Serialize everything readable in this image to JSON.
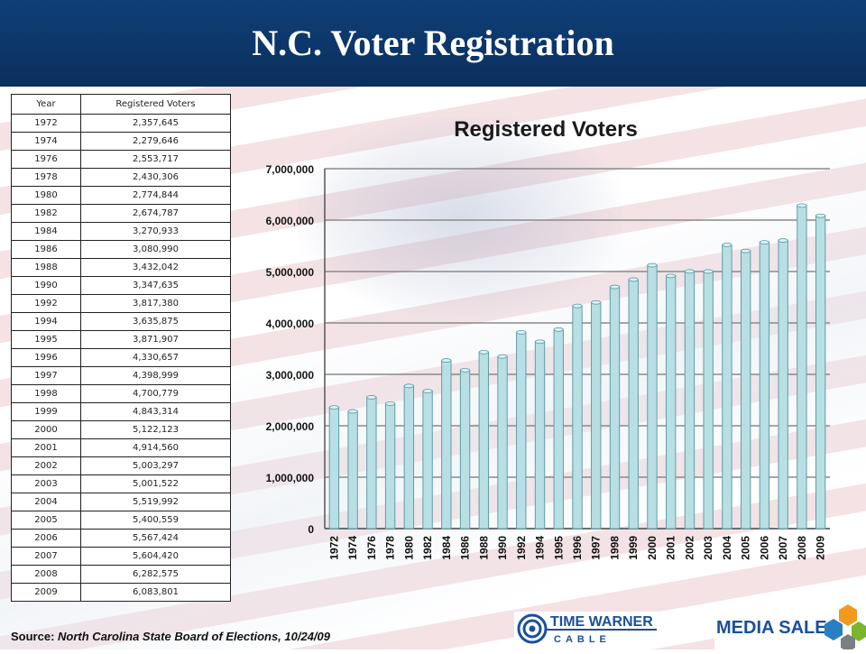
{
  "header": {
    "title": "N.C. Voter Registration"
  },
  "table": {
    "headers": [
      "Year",
      "Registered  Voters"
    ],
    "rows": [
      [
        "1972",
        "2,357,645"
      ],
      [
        "1974",
        "2,279,646"
      ],
      [
        "1976",
        "2,553,717"
      ],
      [
        "1978",
        "2,430,306"
      ],
      [
        "1980",
        "2,774,844"
      ],
      [
        "1982",
        "2,674,787"
      ],
      [
        "1984",
        "3,270,933"
      ],
      [
        "1986",
        "3,080,990"
      ],
      [
        "1988",
        "3,432,042"
      ],
      [
        "1990",
        "3,347,635"
      ],
      [
        "1992",
        "3,817,380"
      ],
      [
        "1994",
        "3,635,875"
      ],
      [
        "1995",
        "3,871,907"
      ],
      [
        "1996",
        "4,330,657"
      ],
      [
        "1997",
        "4,398,999"
      ],
      [
        "1998",
        "4,700,779"
      ],
      [
        "1999",
        "4,843,314"
      ],
      [
        "2000",
        "5,122,123"
      ],
      [
        "2001",
        "4,914,560"
      ],
      [
        "2002",
        "5,003,297"
      ],
      [
        "2003",
        "5,001,522"
      ],
      [
        "2004",
        "5,519,992"
      ],
      [
        "2005",
        "5,400,559"
      ],
      [
        "2006",
        "5,567,424"
      ],
      [
        "2007",
        "5,604,420"
      ],
      [
        "2008",
        "6,282,575"
      ],
      [
        "2009",
        "6,083,801"
      ]
    ]
  },
  "chart_data": {
    "type": "bar",
    "title": "Registered Voters",
    "xlabel": "",
    "ylabel": "",
    "categories": [
      "1972",
      "1974",
      "1976",
      "1978",
      "1980",
      "1982",
      "1984",
      "1986",
      "1988",
      "1990",
      "1992",
      "1994",
      "1995",
      "1996",
      "1997",
      "1998",
      "1999",
      "2000",
      "2001",
      "2002",
      "2003",
      "2004",
      "2005",
      "2006",
      "2007",
      "2008",
      "2009"
    ],
    "values": [
      2357645,
      2279646,
      2553717,
      2430306,
      2774844,
      2674787,
      3270933,
      3080990,
      3432042,
      3347635,
      3817380,
      3635875,
      3871907,
      4330657,
      4398999,
      4700779,
      4843314,
      5122123,
      4914560,
      5003297,
      5001522,
      5519992,
      5400559,
      5567424,
      5604420,
      6282575,
      6083801
    ],
    "ylim": [
      0,
      7000000
    ],
    "yticks": [
      0,
      1000000,
      2000000,
      3000000,
      4000000,
      5000000,
      6000000,
      7000000
    ],
    "ytick_labels": [
      "0",
      "1,000,000",
      "2,000,000",
      "3,000,000",
      "4,000,000",
      "5,000,000",
      "6,000,000",
      "7,000,000"
    ],
    "grid": true,
    "legend": "none",
    "bar_color": "#b8dfe3",
    "bar_edge_color": "#5f9ea6"
  },
  "footer": {
    "source_label": "Source:",
    "source_text": "North Carolina State Board of Elections, 10/24/09",
    "logo_left_line1": "TIME WARNER",
    "logo_left_line2": "CABLE",
    "logo_right": "MEDIA SALES"
  },
  "colors": {
    "title_bar": "#0b2f5d",
    "logo_blue": "#1b4f9a",
    "hex_orange": "#f29a1f",
    "hex_green": "#7ab52b",
    "hex_blue": "#2a7fc2",
    "hex_gray": "#7b7f84"
  }
}
